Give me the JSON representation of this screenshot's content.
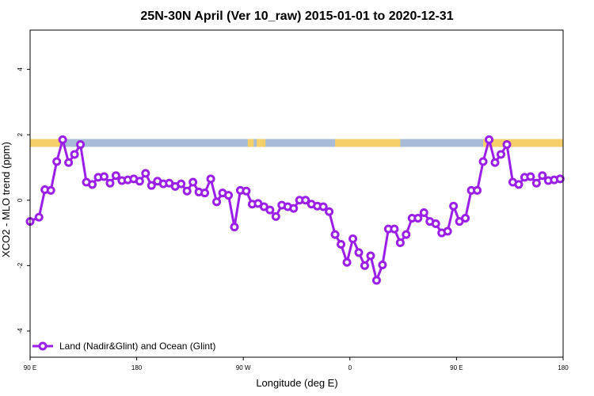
{
  "chart_data": {
    "type": "line",
    "title": "25N-30N April (Ver 10_raw)   2015-01-01 to 2020-12-31",
    "xlabel": "Longitude (deg E)",
    "ylabel": "XCO2 - MLO trend (ppm)",
    "x_tick_labels": [
      "90 E",
      "180",
      "90 W",
      "0",
      "90 E",
      "180"
    ],
    "y_tick_labels": [
      "-4",
      "-2",
      "0",
      "2",
      "4"
    ],
    "y_tick_values": [
      -4,
      -2,
      0,
      2,
      4
    ],
    "ylim": [
      -4.8,
      5.2
    ],
    "xlim": [
      90,
      450
    ],
    "grid": false,
    "legend_position": "bottom-left",
    "colors": {
      "series": "#9b1fe8",
      "land": "#f5d06a",
      "ocean": "#a8bcd8"
    },
    "land_segments": [
      [
        90,
        112
      ],
      [
        237,
        241
      ],
      [
        243,
        249
      ],
      [
        296,
        340
      ],
      [
        396,
        450
      ]
    ],
    "series": [
      {
        "name": "Land (Nadir&Glint) and Ocean (Glint)",
        "x": [
          90,
          96,
          100,
          104,
          108,
          112,
          116,
          120,
          124,
          128,
          132,
          136,
          140,
          144,
          148,
          152,
          156,
          160,
          164,
          168,
          172,
          176,
          180,
          184,
          188,
          192,
          196,
          200,
          204,
          208,
          212,
          216,
          220,
          224,
          228,
          232,
          236,
          240,
          244,
          248,
          252,
          256,
          260,
          264,
          268,
          272,
          276,
          280,
          284,
          288,
          292,
          296,
          300,
          304,
          308,
          312,
          316,
          320,
          324,
          328,
          332,
          336,
          340,
          344,
          348,
          352,
          356,
          360,
          364,
          368,
          372,
          376,
          380,
          384,
          388,
          392,
          396,
          400,
          404,
          408,
          412,
          416,
          420,
          424,
          428,
          432,
          436,
          440,
          444,
          448
        ],
        "values": [
          -0.65,
          -0.52,
          0.32,
          0.3,
          1.18,
          1.85,
          1.15,
          1.4,
          1.7,
          0.55,
          0.48,
          0.7,
          0.72,
          0.52,
          0.75,
          0.6,
          0.62,
          0.65,
          0.58,
          0.82,
          0.45,
          0.58,
          0.5,
          0.52,
          0.42,
          0.5,
          0.28,
          0.55,
          0.25,
          0.22,
          0.65,
          -0.05,
          0.22,
          0.15,
          -0.82,
          0.3,
          0.28,
          -0.12,
          -0.1,
          -0.2,
          -0.3,
          -0.5,
          -0.15,
          -0.2,
          -0.25,
          0.0,
          0.0,
          -0.12,
          -0.18,
          -0.2,
          -0.35,
          -1.05,
          -1.35,
          -1.9,
          -1.18,
          -1.6,
          -2.0,
          -1.7,
          -2.45,
          -1.98,
          -0.88,
          -0.88,
          -1.3,
          -1.05,
          -0.55,
          -0.55,
          -0.38,
          -0.65,
          -0.72,
          -1.0,
          -0.95,
          -0.18,
          -0.65,
          -0.55,
          0.3,
          0.3,
          1.18,
          1.85,
          1.15,
          1.4,
          1.7,
          0.55,
          0.48,
          0.7,
          0.72,
          0.52,
          0.75,
          0.6,
          0.62,
          0.65
        ]
      }
    ]
  }
}
